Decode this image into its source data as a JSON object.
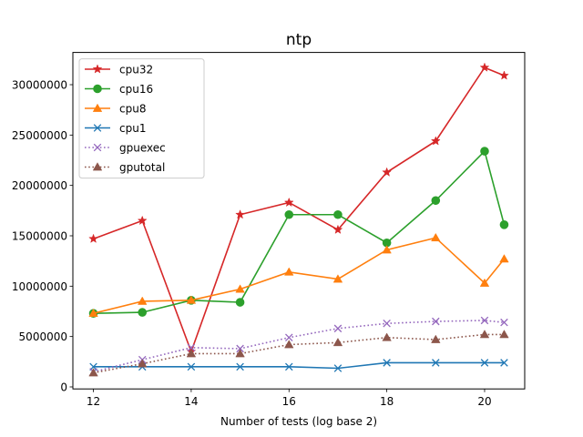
{
  "chart_data": {
    "type": "line",
    "title": "ntp",
    "xlabel": "Number of tests (log base 2)",
    "ylabel": "",
    "xlim": [
      11.58,
      20.82
    ],
    "ylim": [
      -200000,
      33200000
    ],
    "xticks": [
      12,
      14,
      16,
      18,
      20
    ],
    "yticks": [
      0,
      5000000,
      10000000,
      15000000,
      20000000,
      25000000,
      30000000
    ],
    "grid": false,
    "legend_position": "top-left",
    "x": [
      12,
      13,
      14,
      15,
      16,
      17,
      18,
      19,
      20,
      20.4
    ],
    "series": [
      {
        "name": "cpu32",
        "color": "#d62728",
        "marker": "star",
        "linestyle": "solid",
        "values": [
          14700000,
          16500000,
          3500000,
          17100000,
          18300000,
          15600000,
          21300000,
          24400000,
          31700000,
          30900000
        ]
      },
      {
        "name": "cpu16",
        "color": "#2ca02c",
        "marker": "circle",
        "linestyle": "solid",
        "values": [
          7300000,
          7400000,
          8600000,
          8400000,
          17100000,
          17100000,
          14300000,
          18500000,
          23400000,
          16100000
        ]
      },
      {
        "name": "cpu8",
        "color": "#ff7f0e",
        "marker": "triangle",
        "linestyle": "solid",
        "values": [
          7300000,
          8500000,
          8600000,
          9700000,
          11400000,
          10700000,
          13600000,
          14800000,
          10300000,
          12700000
        ]
      },
      {
        "name": "cpu1",
        "color": "#1f77b4",
        "marker": "x",
        "linestyle": "solid",
        "values": [
          2000000,
          2000000,
          2000000,
          2000000,
          2000000,
          1850000,
          2400000,
          2400000,
          2400000,
          2400000
        ]
      },
      {
        "name": "gpuexec",
        "color": "#9467bd",
        "marker": "x",
        "linestyle": "dotted",
        "values": [
          1500000,
          2700000,
          3900000,
          3800000,
          4900000,
          5800000,
          6300000,
          6500000,
          6600000,
          6400000
        ]
      },
      {
        "name": "gputotal",
        "color": "#8c564b",
        "marker": "triangle",
        "linestyle": "dotted",
        "values": [
          1400000,
          2300000,
          3300000,
          3300000,
          4200000,
          4400000,
          4900000,
          4700000,
          5200000,
          5200000
        ]
      }
    ]
  }
}
